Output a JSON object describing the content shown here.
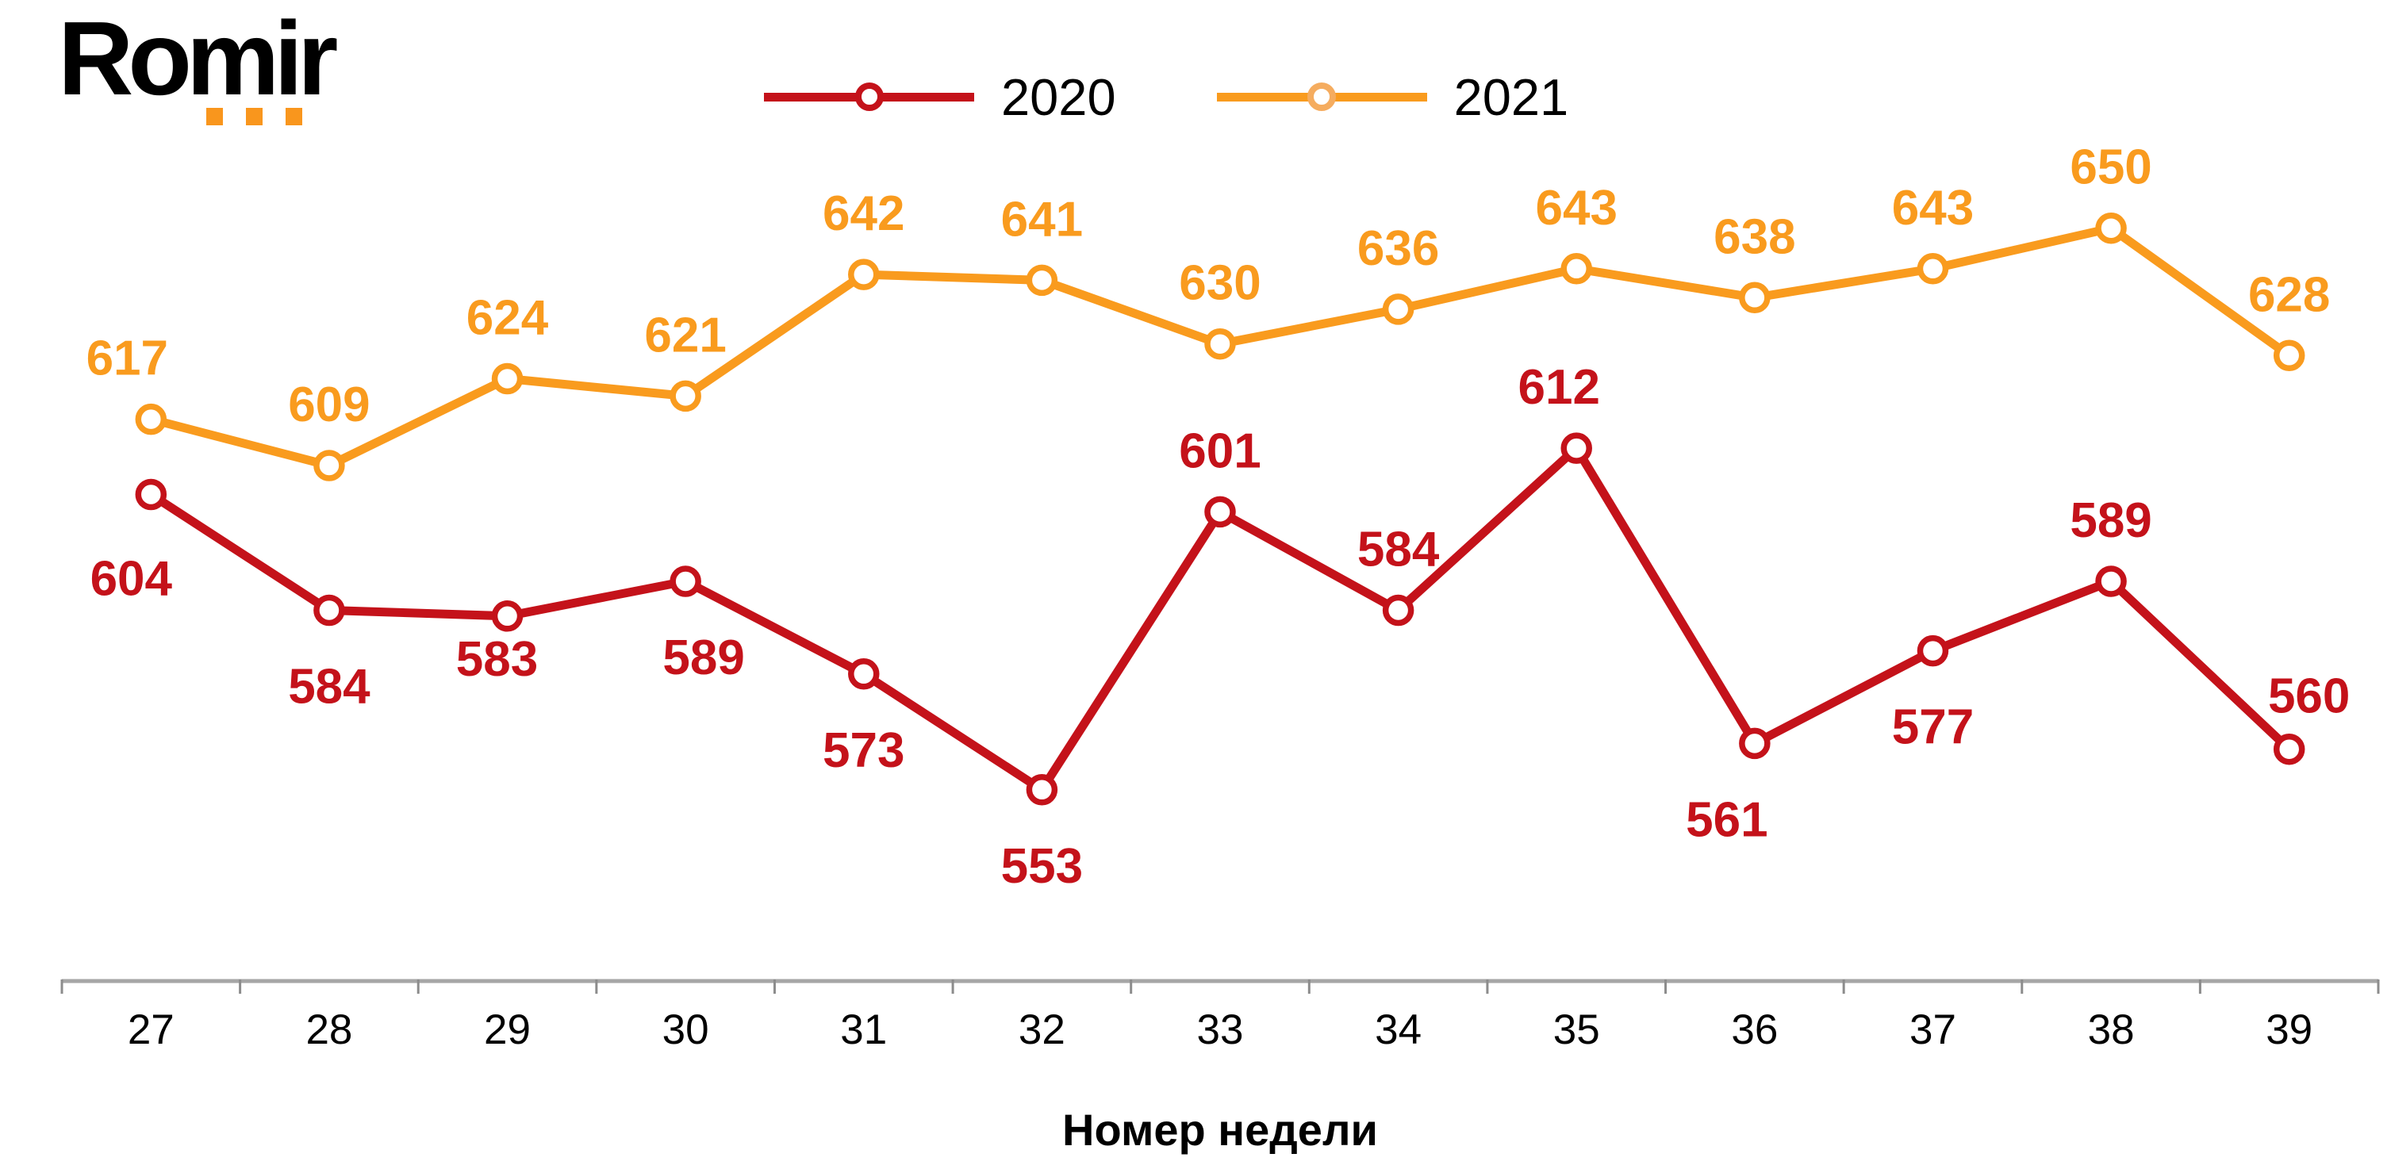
{
  "logo": {
    "text": "Romir",
    "dot_count": 3,
    "dot_color": "#F9961D",
    "text_color": "#000000"
  },
  "chart_data": {
    "type": "line",
    "title": "",
    "xlabel": "Номер недели",
    "categories": [
      "27",
      "28",
      "29",
      "30",
      "31",
      "32",
      "33",
      "34",
      "35",
      "36",
      "37",
      "38",
      "39"
    ],
    "series": [
      {
        "name": "2020",
        "color": "#C4121A",
        "marker": "open-circle",
        "values": [
          604,
          584,
          583,
          589,
          573,
          553,
          601,
          584,
          612,
          561,
          577,
          589,
          560
        ],
        "label_sides": [
          "below",
          "below",
          "below",
          "below",
          "below",
          "below",
          "above",
          "above",
          "above",
          "below",
          "below",
          "above",
          "above"
        ],
        "label_offsets": {
          "0": [
            -25,
            10
          ],
          "2": [
            -13,
            -42
          ],
          "3": [
            23,
            0
          ],
          "8": [
            -22,
            0
          ],
          "9": [
            -35,
            0
          ],
          "12": [
            25,
            10
          ]
        }
      },
      {
        "name": "2021",
        "color": "#F99B1E",
        "legend_marker_color": "#F5AC5F",
        "marker": "open-circle",
        "values": [
          617,
          609,
          624,
          621,
          642,
          641,
          630,
          636,
          643,
          638,
          643,
          650,
          628
        ],
        "label_sides": [
          "above",
          "above",
          "above",
          "above",
          "above",
          "above",
          "above",
          "above",
          "above",
          "above",
          "above",
          "above",
          "above"
        ],
        "label_offsets": {
          "0": [
            -30,
            0
          ]
        }
      }
    ],
    "ylim": [
      520,
      660
    ],
    "grid": false,
    "y_axis_visible": false,
    "legend_position": "top-center",
    "axis_color": "#A6A6A6",
    "tick_color": "#8C8C8C",
    "tick_label_color": "#000000"
  }
}
